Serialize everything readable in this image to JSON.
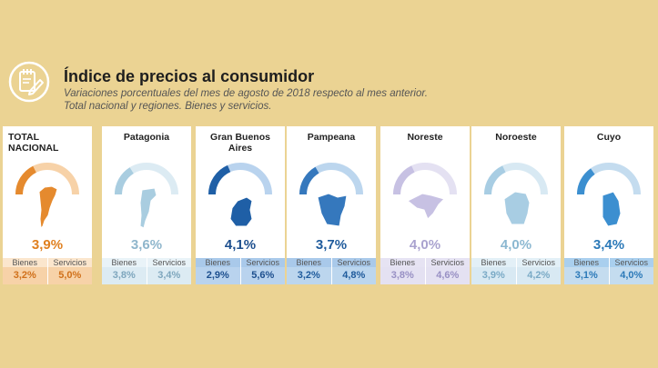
{
  "header": {
    "title": "Índice de precios al consumidor",
    "subtitle_1": "Variaciones porcentuales del mes de agosto de 2018 respecto al mes anterior.",
    "subtitle_2": "Total nacional y regiones. Bienes y servicios."
  },
  "labels": {
    "bienes": "Bienes",
    "servicios": "Servicios"
  },
  "regions": [
    {
      "name": "TOTAL NACIONAL",
      "total": "3,9%",
      "bienes": "3,2%",
      "servicios": "5,0%",
      "level": 0.39,
      "colors": {
        "main": "#e58a2e",
        "light": "#f7d2a8",
        "hdr": "#fbe6cd",
        "text": "#e08020",
        "valtext": "#d0701a"
      }
    },
    {
      "name": "Patagonia",
      "total": "3,6%",
      "bienes": "3,8%",
      "servicios": "3,4%",
      "level": 0.36,
      "colors": {
        "main": "#a9cde0",
        "light": "#dcebf3",
        "hdr": "#e9f3f8",
        "text": "#8fb6cc",
        "valtext": "#7ea6bd"
      }
    },
    {
      "name": "Gran Buenos Aires",
      "total": "4,1%",
      "bienes": "2,9%",
      "servicios": "5,6%",
      "level": 0.41,
      "colors": {
        "main": "#1f5fa6",
        "light": "#b9d3ee",
        "hdr": "#a9c9ea",
        "text": "#1d4f8e",
        "valtext": "#1d4f8e"
      }
    },
    {
      "name": "Pampeana",
      "total": "3,7%",
      "bienes": "3,2%",
      "servicios": "4,8%",
      "level": 0.37,
      "colors": {
        "main": "#3578bd",
        "light": "#bcd6ee",
        "hdr": "#a9c9ea",
        "text": "#1f5b9c",
        "valtext": "#1f5b9c"
      }
    },
    {
      "name": "Noreste",
      "total": "4,0%",
      "bienes": "3,8%",
      "servicios": "4,6%",
      "level": 0.4,
      "colors": {
        "main": "#c7c1e3",
        "light": "#e4e1f2",
        "hdr": "#e6e3f3",
        "text": "#aaa3cf",
        "valtext": "#9890c4"
      }
    },
    {
      "name": "Noroeste",
      "total": "4,0%",
      "bienes": "3,9%",
      "servicios": "4,2%",
      "level": 0.4,
      "colors": {
        "main": "#a8cde3",
        "light": "#d8e9f3",
        "hdr": "#e3f0f7",
        "text": "#8cb8d1",
        "valtext": "#7aaac6"
      }
    },
    {
      "name": "Cuyo",
      "total": "3,4%",
      "bienes": "3,1%",
      "servicios": "4,0%",
      "level": 0.34,
      "colors": {
        "main": "#3c8fd0",
        "light": "#c4dcef",
        "hdr": "#a9cfee",
        "text": "#2b79b8",
        "valtext": "#2b79b8"
      }
    }
  ]
}
